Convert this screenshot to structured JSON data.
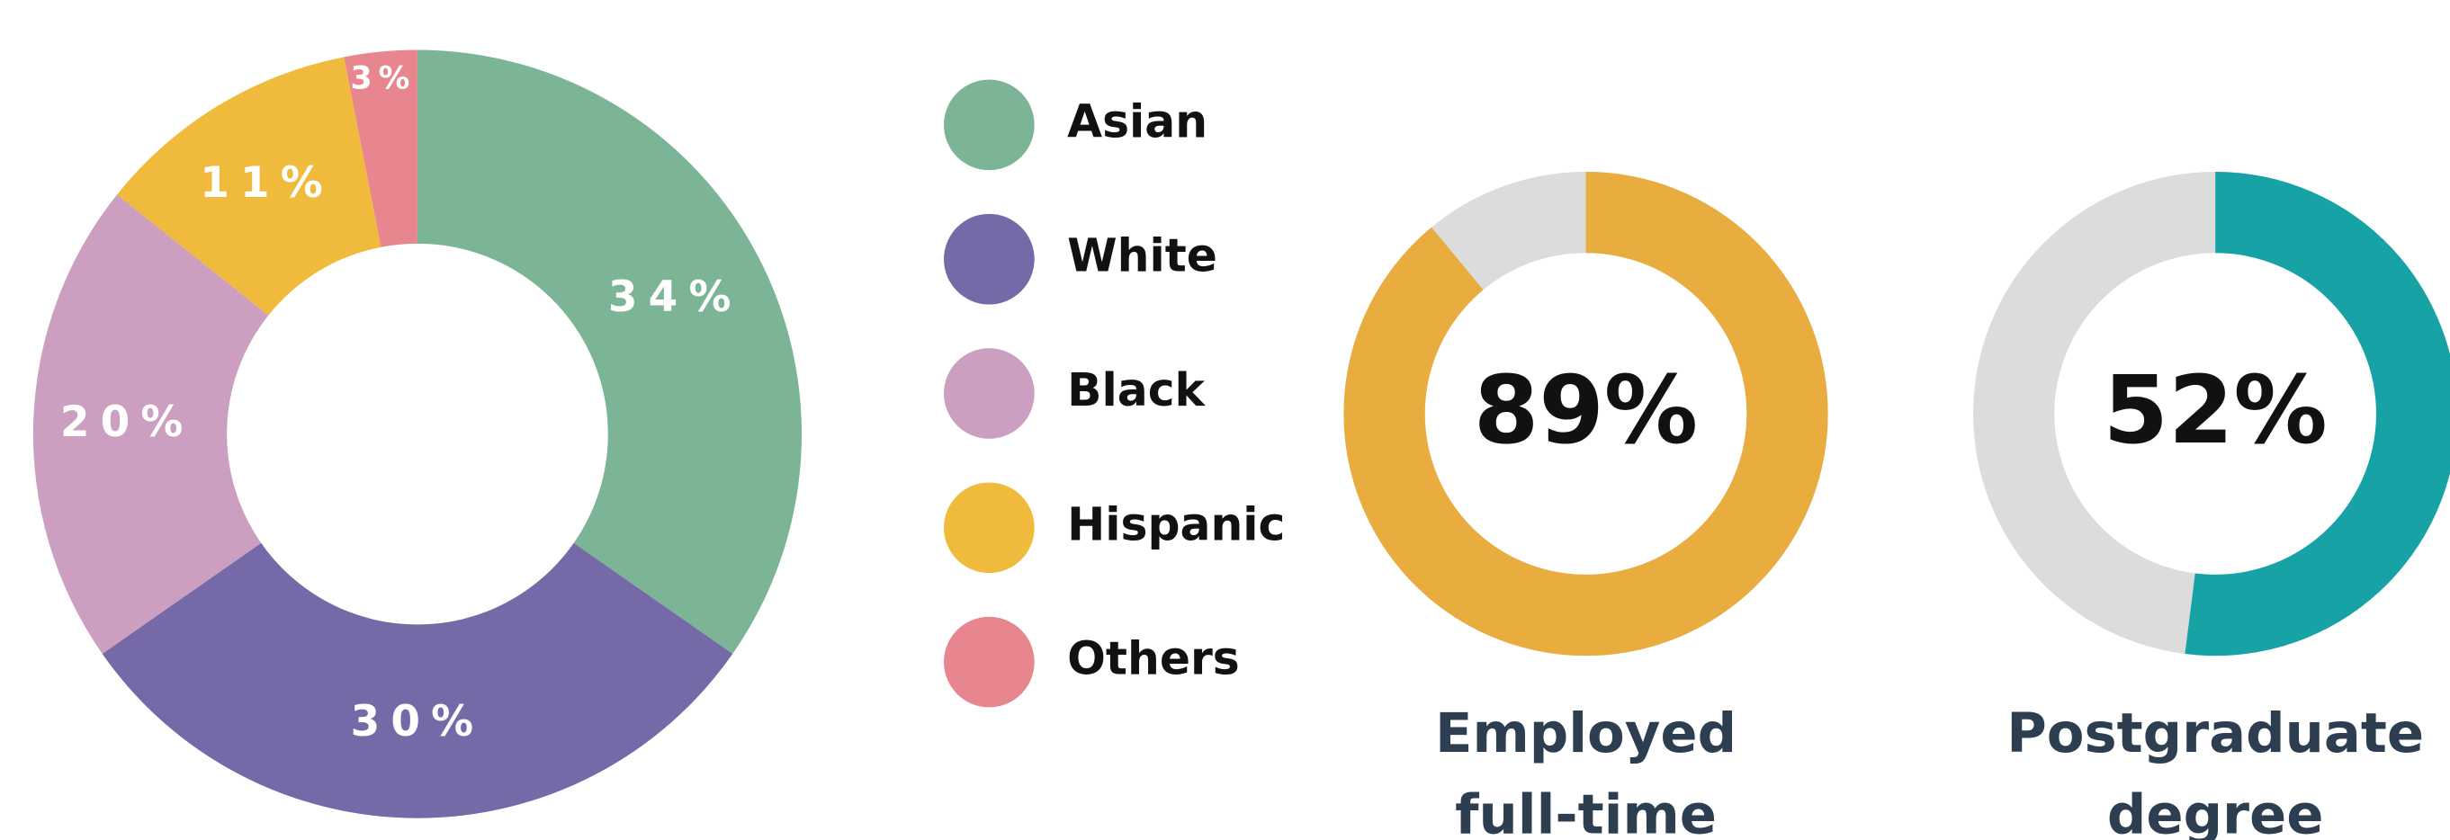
{
  "chart_data": [
    {
      "type": "donut",
      "categories": [
        "Asian",
        "White",
        "Black",
        "Hispanic",
        "Others"
      ],
      "values": [
        34,
        30,
        20,
        11,
        3
      ],
      "value_labels": [
        "34%",
        "30%",
        "20%",
        "11%",
        "3%"
      ],
      "colors": [
        "#7bb596",
        "#7669a8",
        "#cc9fc0",
        "#f0bb3c",
        "#e8868f"
      ],
      "legend": "right"
    },
    {
      "type": "gauge",
      "values": [
        89
      ],
      "value_labels": [
        "89%"
      ],
      "color": "#e9ad3f",
      "track_color": "#dcdcdc",
      "caption": [
        "Employed",
        "full-time"
      ]
    },
    {
      "type": "gauge",
      "values": [
        52
      ],
      "value_labels": [
        "52%"
      ],
      "color": "#17a2a6",
      "track_color": "#dcdcdc",
      "caption": [
        "Postgraduate",
        "degree"
      ]
    }
  ]
}
